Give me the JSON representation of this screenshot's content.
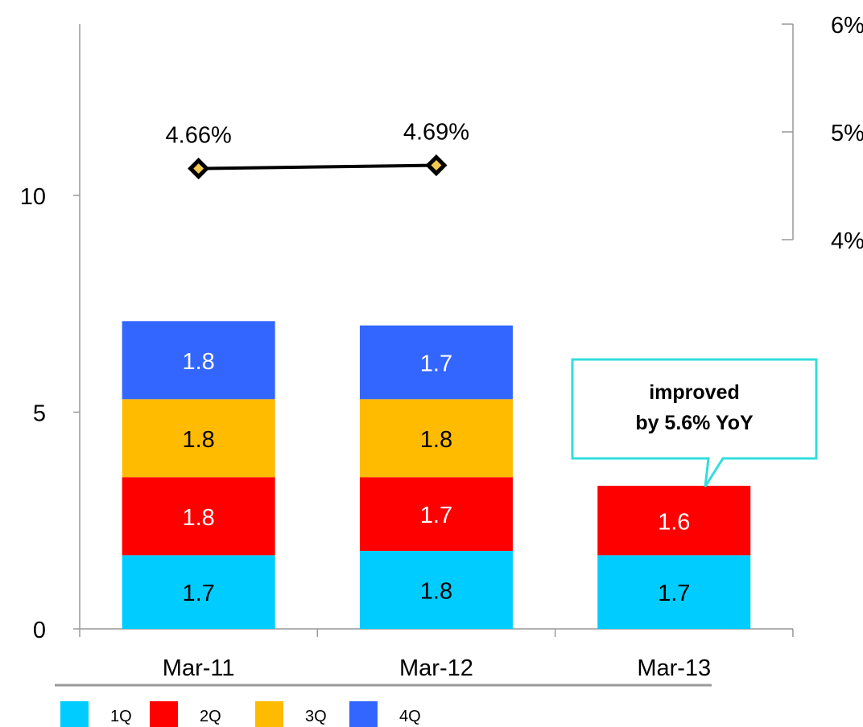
{
  "chart_data": {
    "type": "bar",
    "stacked": true,
    "categories": [
      "Mar-11",
      "Mar-12",
      "Mar-13"
    ],
    "series": [
      {
        "name": "1Q",
        "color": "#00ccff",
        "values": [
          1.7,
          1.8,
          1.7
        ],
        "labels": [
          "1.7",
          "1.8",
          "1.7"
        ],
        "label_color": "#000000"
      },
      {
        "name": "2Q",
        "color": "#ff0000",
        "values": [
          1.8,
          1.7,
          1.6
        ],
        "labels": [
          "1.8",
          "1.7",
          "1.6"
        ],
        "label_color": "#ffffff"
      },
      {
        "name": "3Q",
        "color": "#ffbb00",
        "values": [
          1.8,
          1.8,
          null
        ],
        "labels": [
          "1.8",
          "1.8",
          ""
        ],
        "label_color": "#000000"
      },
      {
        "name": "4Q",
        "color": "#3366ff",
        "values": [
          1.8,
          1.7,
          null
        ],
        "labels": [
          "1.8",
          "1.7",
          ""
        ],
        "label_color": "#ffffff"
      }
    ],
    "y_axis": {
      "ticks": [
        0,
        5,
        10
      ],
      "tick_labels": [
        "0",
        "5",
        "10"
      ],
      "ylim": [
        0,
        14
      ]
    },
    "secondary_axis": {
      "ticks": [
        4,
        5,
        6
      ],
      "tick_labels": [
        "4%",
        "5%",
        "6%"
      ],
      "ylim": [
        4,
        6
      ],
      "line": {
        "color": "#000000",
        "marker_color": "#000000",
        "marker_fill": "#f2c94c",
        "points": [
          {
            "category": "Mar-11",
            "value": 4.66,
            "label": "4.66%"
          },
          {
            "category": "Mar-12",
            "value": 4.69,
            "label": "4.69%"
          }
        ]
      }
    },
    "annotation": {
      "lines": [
        "improved",
        "by 5.6% YoY"
      ],
      "target_category": "Mar-13",
      "border_color": "#33dddd"
    },
    "legend": {
      "position": "bottom-left",
      "entries": [
        "1Q",
        "2Q",
        "3Q",
        "4Q"
      ]
    }
  }
}
